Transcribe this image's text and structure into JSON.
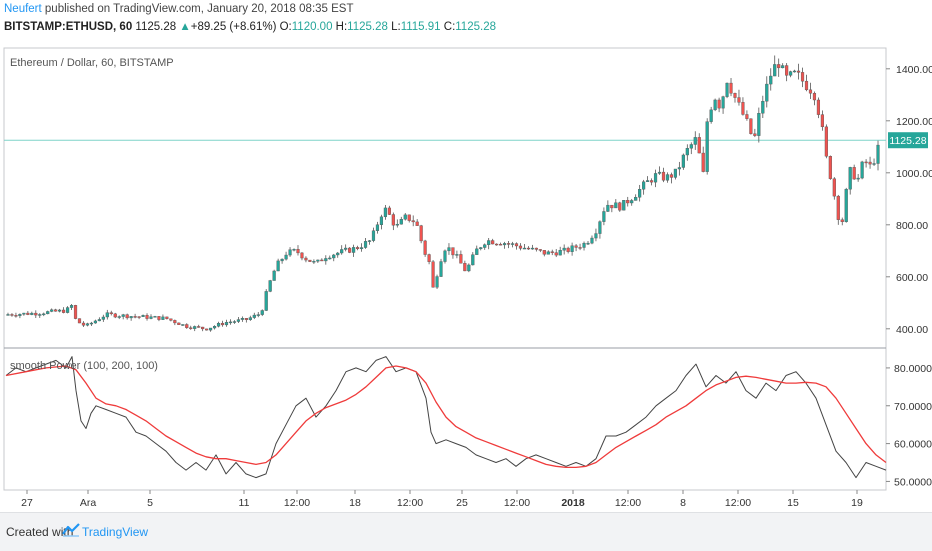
{
  "header": {
    "author": "Neufert",
    "published": " published on TradingView.com, January 20, 2018 08:35 EST",
    "symbol": "BITSTAMP:ETHUSD, 60",
    "last": "1125.28",
    "change": "+89.25 (+8.61%)",
    "o_label": "O:",
    "o_value": "1120.00",
    "h_label": "H:",
    "h_value": "1125.28",
    "l_label": "L:",
    "l_value": "1115.91",
    "c_label": "C:",
    "c_value": "1125.28"
  },
  "footer": {
    "created": "Created with",
    "brand": "TradingView"
  },
  "colors": {
    "up": "#26a69a",
    "down": "#ef5350",
    "wick": "#555555",
    "oscillator": "#444444",
    "signal": "#ef3b3b",
    "last_line": "#7fd3c9",
    "last_label_bg": "#26a69a",
    "grid": "#e0e3eb"
  },
  "chart_data": [
    {
      "type": "candlestick",
      "title": "Ethereum / Dollar, 60, BITSTAMP",
      "ylim": [
        330,
        1480
      ],
      "yticks": [
        "400.00",
        "600.00",
        "800.00",
        "1000.00",
        "1200.00",
        "1400.00"
      ],
      "last_value": 1125.28,
      "last_label": "1125.28",
      "close_path": [
        [
          0,
          455
        ],
        [
          30,
          460
        ],
        [
          60,
          470
        ],
        [
          66,
          490
        ],
        [
          70,
          430
        ],
        [
          80,
          410
        ],
        [
          100,
          455
        ],
        [
          120,
          450
        ],
        [
          140,
          445
        ],
        [
          160,
          440
        ],
        [
          180,
          410
        ],
        [
          200,
          400
        ],
        [
          220,
          425
        ],
        [
          240,
          435
        ],
        [
          255,
          460
        ],
        [
          262,
          560
        ],
        [
          270,
          640
        ],
        [
          280,
          690
        ],
        [
          290,
          700
        ],
        [
          300,
          670
        ],
        [
          310,
          650
        ],
        [
          320,
          680
        ],
        [
          330,
          690
        ],
        [
          350,
          710
        ],
        [
          365,
          740
        ],
        [
          375,
          840
        ],
        [
          380,
          860
        ],
        [
          390,
          790
        ],
        [
          400,
          830
        ],
        [
          410,
          810
        ],
        [
          418,
          700
        ],
        [
          425,
          640
        ],
        [
          428,
          520
        ],
        [
          432,
          640
        ],
        [
          440,
          720
        ],
        [
          450,
          680
        ],
        [
          460,
          620
        ],
        [
          470,
          700
        ],
        [
          480,
          740
        ],
        [
          500,
          730
        ],
        [
          520,
          710
        ],
        [
          540,
          690
        ],
        [
          560,
          700
        ],
        [
          580,
          730
        ],
        [
          590,
          780
        ],
        [
          600,
          880
        ],
        [
          615,
          870
        ],
        [
          630,
          920
        ],
        [
          640,
          960
        ],
        [
          650,
          990
        ],
        [
          660,
          980
        ],
        [
          670,
          1000
        ],
        [
          680,
          1080
        ],
        [
          690,
          1130
        ],
        [
          698,
          980
        ],
        [
          700,
          1180
        ],
        [
          708,
          1300
        ],
        [
          715,
          1250
        ],
        [
          720,
          1370
        ],
        [
          730,
          1280
        ],
        [
          740,
          1200
        ],
        [
          748,
          1120
        ],
        [
          755,
          1260
        ],
        [
          765,
          1380
        ],
        [
          772,
          1430
        ],
        [
          780,
          1360
        ],
        [
          790,
          1380
        ],
        [
          800,
          1340
        ],
        [
          808,
          1310
        ],
        [
          815,
          1200
        ],
        [
          820,
          1060
        ],
        [
          825,
          980
        ],
        [
          830,
          880
        ],
        [
          835,
          780
        ],
        [
          840,
          920
        ],
        [
          846,
          1040
        ],
        [
          850,
          950
        ],
        [
          858,
          1050
        ],
        [
          865,
          1020
        ],
        [
          872,
          1090
        ],
        [
          880,
          1125.28
        ]
      ],
      "candle_count": 220
    },
    {
      "type": "line",
      "title": "smooth Power (100, 200, 100)",
      "ylim": [
        48,
        85
      ],
      "yticks": [
        "50.0000",
        "60.0000",
        "70.0000",
        "80.0000"
      ],
      "xticks": [
        "27",
        "Ara",
        "5",
        "11",
        "12:00",
        "18",
        "12:00",
        "25",
        "12:00",
        "2018",
        "12:00",
        "8",
        "12:00",
        "15",
        "19"
      ],
      "series": [
        {
          "name": "",
          "role": "oscillator",
          "x": [
            0,
            10,
            20,
            30,
            40,
            50,
            60,
            66,
            70,
            75,
            80,
            85,
            90,
            100,
            110,
            120,
            130,
            140,
            150,
            160,
            170,
            180,
            190,
            200,
            210,
            220,
            230,
            240,
            250,
            260,
            270,
            280,
            290,
            300,
            310,
            320,
            330,
            340,
            350,
            360,
            370,
            380,
            390,
            400,
            410,
            420,
            425,
            430,
            440,
            450,
            460,
            470,
            480,
            490,
            500,
            510,
            520,
            530,
            540,
            550,
            560,
            570,
            580,
            590,
            600,
            610,
            620,
            630,
            640,
            650,
            660,
            670,
            680,
            690,
            700,
            710,
            720,
            730,
            740,
            750,
            760,
            770,
            780,
            790,
            800,
            810,
            820,
            830,
            840,
            850,
            860,
            870,
            880
          ],
          "values": [
            78,
            80,
            79,
            80,
            81,
            82,
            80,
            83,
            74,
            66,
            64,
            68,
            70,
            69,
            68,
            67,
            63,
            62,
            60,
            58,
            55,
            53,
            55,
            53,
            57,
            52,
            55,
            52,
            51,
            52,
            60,
            65,
            70,
            72,
            67,
            70,
            74,
            79,
            80,
            79,
            82,
            83,
            79,
            80,
            79,
            72,
            63,
            60,
            61,
            60,
            59,
            57,
            56,
            55,
            56,
            54,
            56,
            57,
            56,
            55,
            54,
            55,
            54,
            56,
            62,
            62,
            63,
            65,
            67,
            70,
            72,
            74,
            78,
            81,
            75,
            78,
            76,
            79,
            74,
            72,
            76,
            74,
            78,
            79,
            76,
            72,
            65,
            58,
            55,
            51,
            55,
            54,
            53
          ]
        },
        {
          "name": "",
          "role": "signal",
          "x": [
            0,
            20,
            40,
            60,
            70,
            80,
            90,
            100,
            110,
            120,
            130,
            140,
            150,
            160,
            170,
            180,
            190,
            200,
            210,
            220,
            230,
            240,
            250,
            260,
            270,
            280,
            290,
            300,
            310,
            320,
            330,
            340,
            350,
            360,
            370,
            380,
            390,
            400,
            410,
            420,
            430,
            440,
            450,
            460,
            470,
            480,
            490,
            500,
            510,
            520,
            530,
            540,
            550,
            560,
            570,
            580,
            590,
            600,
            610,
            620,
            630,
            640,
            650,
            660,
            670,
            680,
            690,
            700,
            710,
            720,
            730,
            740,
            750,
            760,
            770,
            780,
            790,
            800,
            810,
            820,
            830,
            840,
            850,
            860,
            870,
            880
          ],
          "values": [
            78,
            79,
            80,
            80.5,
            79.5,
            76,
            72,
            70.5,
            70,
            69,
            67.5,
            66,
            64,
            62,
            60.5,
            59,
            57.5,
            56.5,
            56,
            56,
            55.5,
            55,
            54.5,
            55,
            57,
            60,
            63,
            66,
            68,
            69.5,
            70.5,
            71.5,
            73,
            75,
            77.5,
            80,
            80.5,
            80,
            79,
            76,
            71,
            67,
            64.5,
            63,
            61.5,
            60.5,
            59.5,
            58.5,
            57.5,
            56.5,
            55.5,
            54.5,
            54,
            53.7,
            53.7,
            54,
            55,
            57,
            59,
            60.5,
            62,
            63.5,
            65,
            67,
            68.5,
            70,
            72,
            74,
            75.5,
            76.5,
            77.5,
            77.8,
            77.5,
            77,
            76.5,
            76,
            76,
            76.2,
            76,
            75,
            72,
            68,
            64,
            60,
            57,
            55
          ]
        }
      ]
    }
  ]
}
